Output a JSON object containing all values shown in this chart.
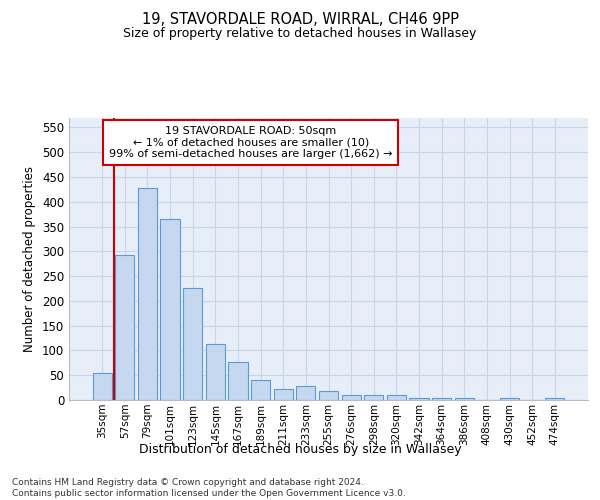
{
  "title": "19, STAVORDALE ROAD, WIRRAL, CH46 9PP",
  "subtitle": "Size of property relative to detached houses in Wallasey",
  "xlabel": "Distribution of detached houses by size in Wallasey",
  "ylabel": "Number of detached properties",
  "categories": [
    "35sqm",
    "57sqm",
    "79sqm",
    "101sqm",
    "123sqm",
    "145sqm",
    "167sqm",
    "189sqm",
    "211sqm",
    "233sqm",
    "255sqm",
    "276sqm",
    "298sqm",
    "320sqm",
    "342sqm",
    "364sqm",
    "386sqm",
    "408sqm",
    "430sqm",
    "452sqm",
    "474sqm"
  ],
  "values": [
    55,
    293,
    428,
    365,
    226,
    113,
    76,
    40,
    22,
    29,
    19,
    10,
    10,
    10,
    5,
    5,
    5,
    0,
    5,
    0,
    5
  ],
  "bar_color": "#c5d8f0",
  "bar_edge_color": "#5b9bd5",
  "marker_line_color": "#cc0000",
  "annotation_title": "19 STAVORDALE ROAD: 50sqm",
  "annotation_line2": "← 1% of detached houses are smaller (10)",
  "annotation_line3": "99% of semi-detached houses are larger (1,662) →",
  "annotation_box_facecolor": "#ffffff",
  "annotation_border_color": "#cc0000",
  "ylim": [
    0,
    570
  ],
  "yticks": [
    0,
    50,
    100,
    150,
    200,
    250,
    300,
    350,
    400,
    450,
    500,
    550
  ],
  "grid_color": "#c8d4e8",
  "plot_bg_color": "#e8eef8",
  "footer_line1": "Contains HM Land Registry data © Crown copyright and database right 2024.",
  "footer_line2": "Contains public sector information licensed under the Open Government Licence v3.0."
}
